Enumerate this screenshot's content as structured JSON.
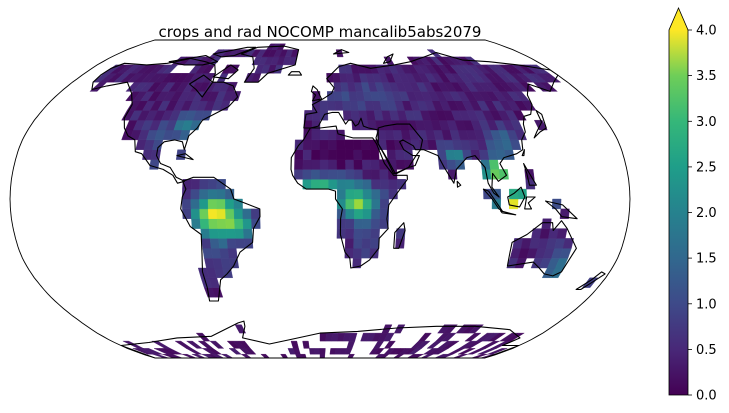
{
  "title": "crops and rad NOCOMP mancalib5abs2079",
  "colorbar": {
    "colormap": "viridis",
    "vmin": 0.0,
    "vmax": 4.0,
    "extend": "max",
    "tick_labels": [
      "0.0",
      "0.5",
      "1.0",
      "1.5",
      "2.0",
      "2.5",
      "3.0",
      "3.5",
      "4.0"
    ]
  },
  "map": {
    "projection": "Robinson",
    "coastlines": true,
    "ocean_color": "#ffffff",
    "land_without_data": "#ffffff"
  },
  "chart_data": {
    "type": "heatmap",
    "title": "crops and rad NOCOMP mancalib5abs2079",
    "colorbar_range": [
      0.0,
      4.0
    ],
    "colorbar_extend": "max",
    "regions": [
      {
        "name": "Canada and Alaska",
        "approx_value": 0.4
      },
      {
        "name": "Eastern United States",
        "approx_value": 1.5
      },
      {
        "name": "Western United States",
        "approx_value": 0.6
      },
      {
        "name": "Central America",
        "approx_value": 1.8
      },
      {
        "name": "Amazon basin",
        "approx_value": 4.0
      },
      {
        "name": "Southern South America",
        "approx_value": 0.8
      },
      {
        "name": "Europe",
        "approx_value": 0.6
      },
      {
        "name": "Sahara",
        "approx_value": 0.1
      },
      {
        "name": "Sahel",
        "approx_value": 1.5
      },
      {
        "name": "Central Africa",
        "approx_value": 3.0
      },
      {
        "name": "Southern Africa",
        "approx_value": 0.8
      },
      {
        "name": "Russia and Central Asia",
        "approx_value": 0.5
      },
      {
        "name": "East Asia",
        "approx_value": 1.0
      },
      {
        "name": "South Asia",
        "approx_value": 1.5
      },
      {
        "name": "Southeast Asia and Indonesia",
        "approx_value": 4.0
      },
      {
        "name": "Australia",
        "approx_value": 0.5
      },
      {
        "name": "Antarctica",
        "approx_value": 0.2
      }
    ]
  }
}
